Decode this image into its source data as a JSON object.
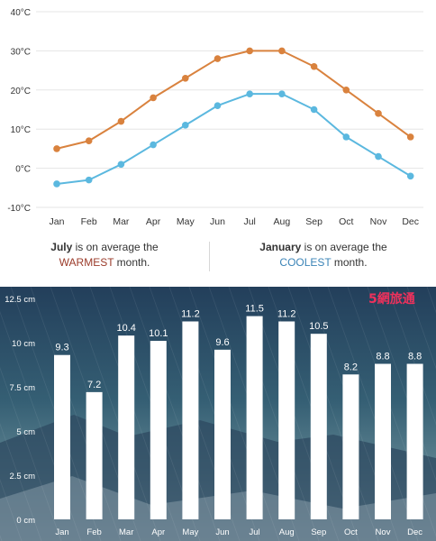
{
  "temperature_summary": {
    "warmest_month": "July",
    "warmest_phrase_start": " is on average the",
    "warmest_word": "WARMEST",
    "warmest_phrase_end": " month.",
    "coolest_month": "January",
    "coolest_phrase_start": " is on average the",
    "coolest_word": "COOLEST",
    "coolest_phrase_end": " month."
  },
  "watermark": {
    "text": "5網旅通"
  },
  "colors": {
    "high_line": "#d9823e",
    "low_line": "#5bb8df",
    "grid": "#e5e5e5",
    "axis_text": "#333333",
    "bars": "#ffffff",
    "rain_text": "#ffffff"
  },
  "chart_data": [
    {
      "type": "line",
      "title": "",
      "xlabel": "",
      "ylabel": "",
      "categories": [
        "Jan",
        "Feb",
        "Mar",
        "Apr",
        "May",
        "Jun",
        "Jul",
        "Aug",
        "Sep",
        "Oct",
        "Nov",
        "Dec"
      ],
      "series": [
        {
          "name": "",
          "color": "#d9823e",
          "values": [
            5,
            7,
            12,
            18,
            23,
            28,
            30,
            30,
            26,
            20,
            14,
            8
          ]
        },
        {
          "name": "",
          "color": "#5bb8df",
          "values": [
            -4,
            -3,
            1,
            6,
            11,
            16,
            19,
            19,
            15,
            8,
            3,
            -2
          ]
        }
      ],
      "ylim": [
        -10,
        40
      ],
      "yticks": [
        -10,
        0,
        10,
        20,
        30,
        40
      ],
      "ytick_labels": [
        "-10°C",
        "0°C",
        "10°C",
        "20°C",
        "30°C",
        "40°C"
      ],
      "grid": true,
      "legend": "none"
    },
    {
      "type": "bar",
      "title": "",
      "xlabel": "",
      "ylabel": "",
      "categories": [
        "Jan",
        "Feb",
        "Mar",
        "Apr",
        "May",
        "Jun",
        "Jul",
        "Aug",
        "Sep",
        "Oct",
        "Nov",
        "Dec"
      ],
      "values": [
        9.3,
        7.2,
        10.4,
        10.1,
        11.2,
        9.6,
        11.5,
        11.2,
        10.5,
        8.2,
        8.8,
        8.8
      ],
      "value_labels": [
        "9.3",
        "7.2",
        "10.4",
        "10.1",
        "11.2",
        "9.6",
        "11.5",
        "11.2",
        "10.5",
        "8.2",
        "8.8",
        "8.8"
      ],
      "ylim": [
        0,
        12.5
      ],
      "yticks": [
        0,
        2.5,
        5,
        7.5,
        10,
        12.5
      ],
      "ytick_labels": [
        "0 cm",
        "2.5 cm",
        "5 cm",
        "7.5 cm",
        "10 cm",
        "12.5 cm"
      ],
      "grid": false,
      "legend": "none"
    }
  ]
}
